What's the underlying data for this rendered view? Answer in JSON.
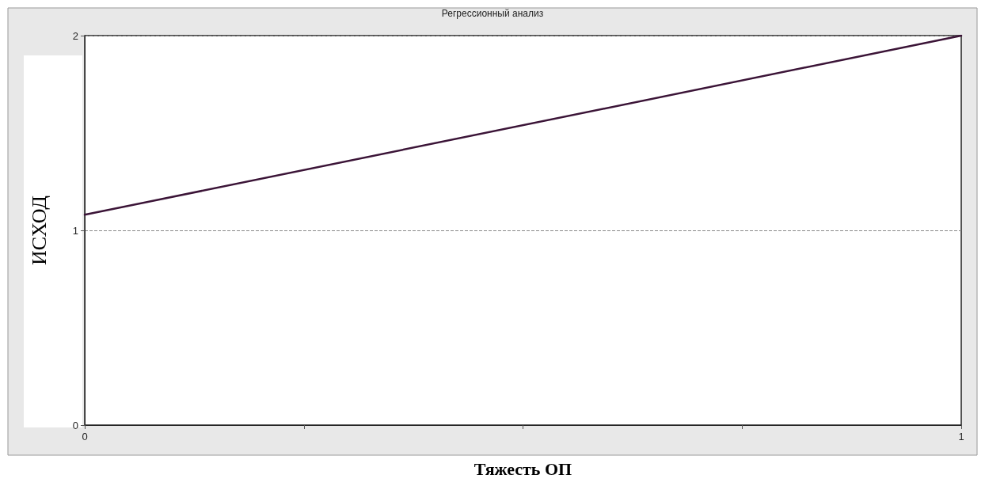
{
  "chart_data": {
    "type": "line",
    "title": "Регрессионный анализ",
    "xlabel": "Тяжесть ОП",
    "ylabel": "ИСХОД",
    "x": [
      0,
      1
    ],
    "series": [
      {
        "color": "#3b1437",
        "values": [
          1.08,
          2
        ]
      }
    ],
    "xlim": [
      0,
      1
    ],
    "xticks": [
      0,
      {
        "value": 0.25,
        "label": null
      },
      {
        "value": 0.5,
        "label": null
      },
      {
        "value": 0.75,
        "label": null
      },
      1
    ],
    "ylim": [
      0,
      2
    ],
    "yticks": [
      0,
      1,
      2
    ],
    "grid": "y",
    "marker": "none",
    "line_style": "solid"
  }
}
